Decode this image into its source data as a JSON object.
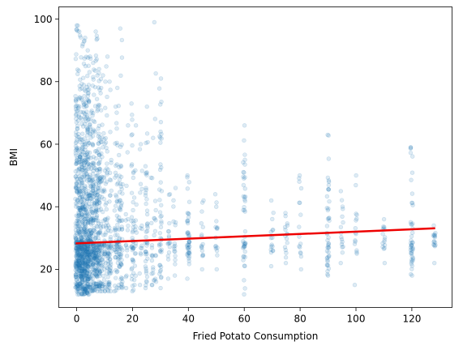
{
  "chart_data": {
    "type": "scatter",
    "title": "",
    "xlabel": "Fried Potato Consumption",
    "ylabel": "BMI",
    "xlim": [
      -6.4,
      134.4
    ],
    "ylim": [
      7.8,
      103.9
    ],
    "xticks": [
      0,
      20,
      40,
      60,
      80,
      100,
      120
    ],
    "yticks": [
      20,
      40,
      60,
      80,
      100
    ],
    "grid": false,
    "legend": "none",
    "point_color": "#1f77b4",
    "point_alpha": 0.15,
    "clusters": [
      {
        "x": 0,
        "bmi_min": 12,
        "bmi_max": 98,
        "density": "very high"
      },
      {
        "x": 1,
        "bmi_min": 12,
        "bmi_max": 96,
        "density": "very high"
      },
      {
        "x": 2,
        "bmi_min": 12,
        "bmi_max": 92,
        "density": "very high"
      },
      {
        "x": 3,
        "bmi_min": 12,
        "bmi_max": 94,
        "density": "very high"
      },
      {
        "x": 4,
        "bmi_min": 12,
        "bmi_max": 90,
        "density": "very high"
      },
      {
        "x": 5,
        "bmi_min": 13,
        "bmi_max": 88,
        "density": "high"
      },
      {
        "x": 6,
        "bmi_min": 13,
        "bmi_max": 86,
        "density": "high"
      },
      {
        "x": 7,
        "bmi_min": 13,
        "bmi_max": 96,
        "density": "high"
      },
      {
        "x": 8,
        "bmi_min": 13,
        "bmi_max": 84,
        "density": "high"
      },
      {
        "x": 9,
        "bmi_min": 13,
        "bmi_max": 82,
        "density": "medium"
      },
      {
        "x": 10,
        "bmi_min": 13,
        "bmi_max": 80,
        "density": "medium"
      },
      {
        "x": 11,
        "bmi_min": 13,
        "bmi_max": 88,
        "density": "medium"
      },
      {
        "x": 12,
        "bmi_min": 13,
        "bmi_max": 80,
        "density": "medium"
      },
      {
        "x": 14,
        "bmi_min": 13,
        "bmi_max": 72,
        "density": "medium"
      },
      {
        "x": 15,
        "bmi_min": 14,
        "bmi_max": 78,
        "density": "medium"
      },
      {
        "x": 16,
        "bmi_min": 14,
        "bmi_max": 97,
        "density": "medium"
      },
      {
        "x": 18,
        "bmi_min": 14,
        "bmi_max": 66,
        "density": "low"
      },
      {
        "x": 20,
        "bmi_min": 13,
        "bmi_max": 73,
        "density": "medium"
      },
      {
        "x": 21,
        "bmi_min": 15,
        "bmi_max": 66,
        "density": "low"
      },
      {
        "x": 23,
        "bmi_min": 15,
        "bmi_max": 60,
        "density": "low"
      },
      {
        "x": 25,
        "bmi_min": 14,
        "bmi_max": 72,
        "density": "medium"
      },
      {
        "x": 27,
        "bmi_min": 15,
        "bmi_max": 62,
        "density": "low"
      },
      {
        "x": 28,
        "bmi_min": 16,
        "bmi_max": 99,
        "density": "low"
      },
      {
        "x": 30,
        "bmi_min": 14,
        "bmi_max": 81,
        "density": "medium"
      },
      {
        "x": 33,
        "bmi_min": 17,
        "bmi_max": 44,
        "density": "low"
      },
      {
        "x": 35,
        "bmi_min": 18,
        "bmi_max": 46,
        "density": "low"
      },
      {
        "x": 40,
        "bmi_min": 17,
        "bmi_max": 50,
        "density": "medium"
      },
      {
        "x": 45,
        "bmi_min": 20,
        "bmi_max": 42,
        "density": "low"
      },
      {
        "x": 50,
        "bmi_min": 20,
        "bmi_max": 44,
        "density": "low"
      },
      {
        "x": 60,
        "bmi_min": 12,
        "bmi_max": 66,
        "density": "medium"
      },
      {
        "x": 70,
        "bmi_min": 21,
        "bmi_max": 42,
        "density": "low"
      },
      {
        "x": 75,
        "bmi_min": 22,
        "bmi_max": 38,
        "density": "low"
      },
      {
        "x": 80,
        "bmi_min": 20,
        "bmi_max": 50,
        "density": "low"
      },
      {
        "x": 90,
        "bmi_min": 18,
        "bmi_max": 63,
        "density": "medium"
      },
      {
        "x": 95,
        "bmi_min": 22,
        "bmi_max": 45,
        "density": "low"
      },
      {
        "x": 100,
        "bmi_min": 15,
        "bmi_max": 50,
        "density": "low"
      },
      {
        "x": 110,
        "bmi_min": 22,
        "bmi_max": 36,
        "density": "low"
      },
      {
        "x": 120,
        "bmi_min": 18,
        "bmi_max": 59,
        "density": "medium"
      },
      {
        "x": 128,
        "bmi_min": 22,
        "bmi_max": 34,
        "density": "low"
      }
    ],
    "regression_line": {
      "color": "#ee0000",
      "x": [
        0,
        128
      ],
      "y": [
        28.3,
        33.1
      ]
    }
  }
}
